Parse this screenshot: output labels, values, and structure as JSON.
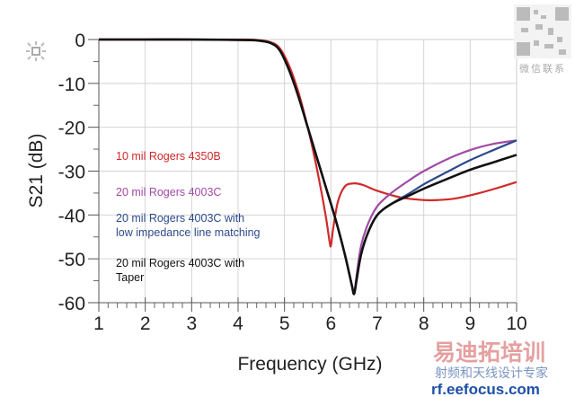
{
  "chart_data": {
    "type": "line",
    "title": "",
    "xlabel": "Frequency (GHz)",
    "ylabel": "S21 (dB)",
    "xlim": [
      1,
      10
    ],
    "ylim": [
      -60,
      0
    ],
    "xticks": [
      "1",
      "2",
      "3",
      "4",
      "5",
      "6",
      "7",
      "8",
      "9",
      "10"
    ],
    "yticks": [
      "0",
      "-10",
      "-20",
      "-30",
      "-40",
      "-50",
      "-60"
    ],
    "grid": true,
    "legend_placement": "left-inside",
    "series": [
      {
        "name": "10 mil Rogers 4350B",
        "color": "#d12a2a",
        "x": [
          1,
          2,
          3,
          4,
          4.4,
          4.7,
          4.9,
          5.1,
          5.3,
          5.5,
          5.65,
          5.8,
          5.9,
          5.97,
          6.0,
          6.05,
          6.15,
          6.3,
          6.5,
          6.7,
          7.0,
          7.5,
          8.0,
          8.3,
          8.7,
          9.2,
          9.6,
          10
        ],
        "y": [
          0,
          0,
          0,
          0,
          -0.1,
          -0.6,
          -2,
          -6,
          -12,
          -20,
          -27,
          -35,
          -41,
          -46,
          -47,
          -43,
          -37,
          -33.5,
          -32.8,
          -33.2,
          -34.5,
          -36,
          -36.6,
          -36.6,
          -36.2,
          -35,
          -33.8,
          -32.5
        ]
      },
      {
        "name": "20 mil Rogers 4003C",
        "color": "#a04aa6",
        "x": [
          1,
          2,
          3,
          4,
          4.4,
          4.7,
          4.9,
          5.1,
          5.3,
          5.5,
          5.7,
          5.9,
          6.1,
          6.3,
          6.45,
          6.5,
          6.55,
          6.65,
          6.8,
          7.0,
          7.3,
          7.7,
          8.0,
          8.5,
          9.0,
          9.5,
          10
        ],
        "y": [
          0,
          0,
          0,
          -0.1,
          -0.2,
          -0.8,
          -2.5,
          -7,
          -13,
          -20,
          -27,
          -34,
          -41,
          -49,
          -56,
          -58,
          -54,
          -47,
          -42,
          -38,
          -35,
          -32,
          -30,
          -27.3,
          -25.2,
          -23.8,
          -23
        ]
      },
      {
        "name": "20 mil Rogers 4003C with low impedance line matching",
        "color": "#2d4a8c",
        "x": [
          1,
          2,
          3,
          4,
          4.4,
          4.7,
          4.9,
          5.1,
          5.3,
          5.5,
          5.7,
          5.9,
          6.1,
          6.3,
          6.45,
          6.5,
          6.55,
          6.65,
          6.8,
          7.0,
          7.3,
          7.7,
          8.0,
          8.5,
          9.0,
          9.5,
          10
        ],
        "y": [
          0,
          0,
          0,
          -0.1,
          -0.2,
          -0.8,
          -2.5,
          -7,
          -13,
          -20,
          -27,
          -34,
          -41,
          -49,
          -56,
          -58,
          -55,
          -49,
          -44,
          -40,
          -37.5,
          -35,
          -33,
          -30.2,
          -27.5,
          -25.2,
          -23
        ]
      },
      {
        "name": "20 mil Rogers 4003C with Taper",
        "color": "#111111",
        "x": [
          1,
          2,
          3,
          4,
          4.4,
          4.7,
          4.9,
          5.1,
          5.3,
          5.5,
          5.7,
          5.9,
          6.1,
          6.3,
          6.45,
          6.5,
          6.55,
          6.65,
          6.8,
          7.0,
          7.3,
          7.7,
          8.0,
          8.5,
          9.0,
          9.5,
          10
        ],
        "y": [
          0,
          0,
          0,
          -0.1,
          -0.2,
          -0.8,
          -2.5,
          -7,
          -13,
          -20,
          -27,
          -34,
          -41,
          -49,
          -56,
          -58,
          -55,
          -49,
          -44,
          -40,
          -37.5,
          -35.5,
          -34,
          -31.8,
          -29.7,
          -28,
          -26.3
        ]
      }
    ]
  },
  "watermark": {
    "brand": "易迪拓培训",
    "tagline": "射频和天线设计专家",
    "url": "rf.eefocus.com",
    "qr_label": "微信联系"
  }
}
